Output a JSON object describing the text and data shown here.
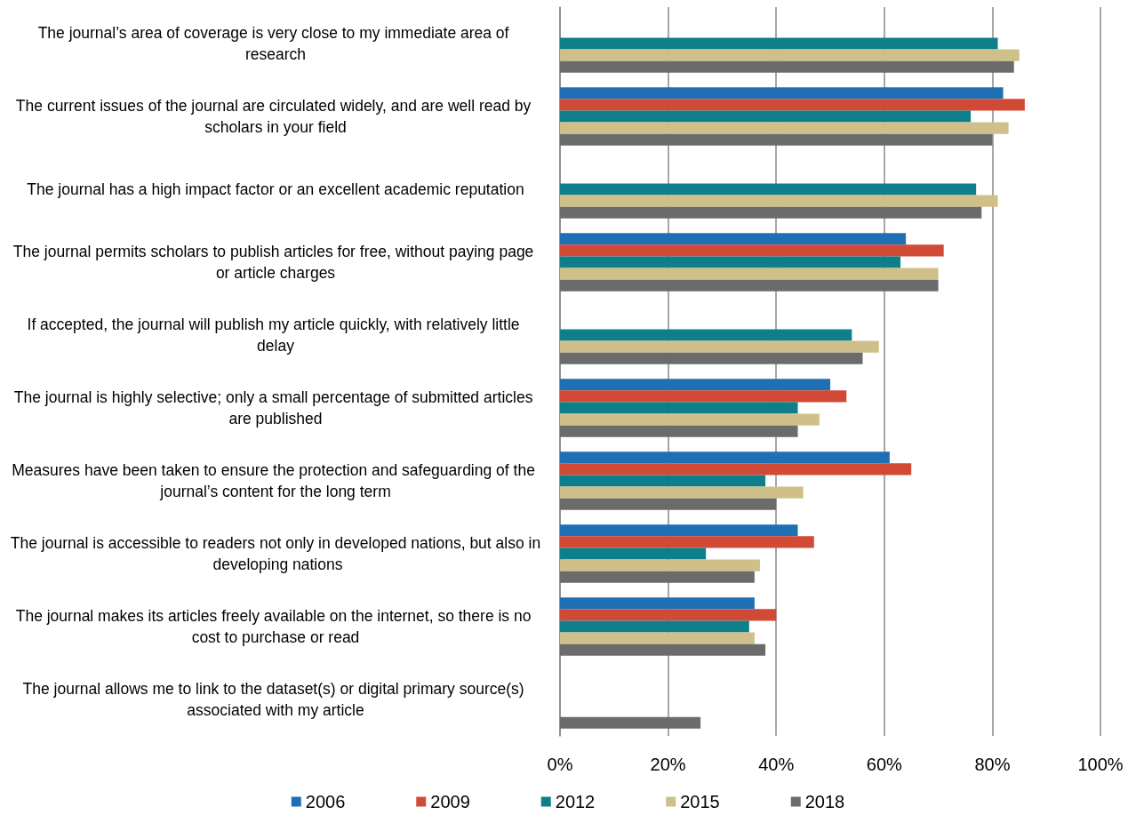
{
  "chart_data": {
    "type": "bar",
    "orientation": "horizontal",
    "categories": [
      "The journal’s area of coverage is very close to my immediate area of research",
      "The current issues of the journal are circulated widely, and are well read by scholars in your field",
      "The journal has a high impact factor or an excellent academic reputation",
      "The journal permits scholars to publish articles for free, without paying page or article charges",
      "If accepted, the journal will publish my article quickly, with relatively little delay",
      "The journal is highly selective; only a small percentage of submitted articles are published",
      "Measures have been taken to ensure the protection and safeguarding of the journal’s content for the long term",
      "The journal is accessible to readers not only in developed nations, but also in developing nations",
      "The journal makes its articles freely available on the internet, so there is no cost to purchase or read",
      "The journal allows me to link to the dataset(s) or digital primary source(s) associated with my article"
    ],
    "series": [
      {
        "name": "2006",
        "color": "#1f6fb5",
        "values": [
          null,
          82,
          null,
          64,
          null,
          50,
          61,
          44,
          36,
          null
        ]
      },
      {
        "name": "2009",
        "color": "#d04a35",
        "values": [
          null,
          86,
          null,
          71,
          null,
          53,
          65,
          47,
          40,
          null
        ]
      },
      {
        "name": "2012",
        "color": "#0e7f8a",
        "values": [
          81,
          76,
          77,
          63,
          54,
          44,
          38,
          27,
          35,
          null
        ]
      },
      {
        "name": "2015",
        "color": "#cfc08a",
        "values": [
          85,
          83,
          81,
          70,
          59,
          48,
          45,
          37,
          36,
          null
        ]
      },
      {
        "name": "2018",
        "color": "#6b6b6b",
        "values": [
          84,
          80,
          78,
          70,
          56,
          44,
          40,
          36,
          38,
          26
        ]
      }
    ],
    "xlim": [
      0,
      100
    ],
    "xticks": [
      {
        "value": 0,
        "label": "0%"
      },
      {
        "value": 20,
        "label": "20%"
      },
      {
        "value": 40,
        "label": "40%"
      },
      {
        "value": 60,
        "label": "60%"
      },
      {
        "value": 80,
        "label": "80%"
      },
      {
        "value": 100,
        "label": "100%"
      }
    ],
    "grid": "x",
    "legend": "bottom"
  }
}
